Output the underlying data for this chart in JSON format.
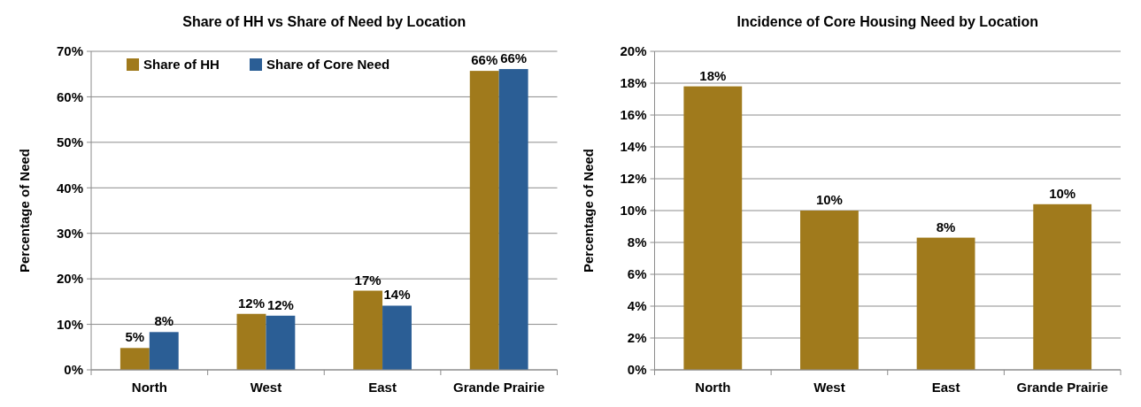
{
  "chart_data": [
    {
      "type": "bar",
      "title": "Share of HH vs Share of Need by Location",
      "ylabel": "Percentage of Need",
      "categories": [
        "North",
        "West",
        "East",
        "Grande Prairie"
      ],
      "series": [
        {
          "name": "Share of HH",
          "color": "#a07a1c",
          "values": [
            4.8,
            12.3,
            17.4,
            65.7
          ],
          "value_labels": [
            "5%",
            "12%",
            "17%",
            "66%"
          ]
        },
        {
          "name": "Share of Core Need",
          "color": "#2b5e95",
          "values": [
            8.3,
            11.9,
            14.1,
            66.1
          ],
          "value_labels": [
            "8%",
            "12%",
            "14%",
            "66%"
          ]
        }
      ],
      "ylim": [
        0,
        70
      ],
      "yticks": [
        {
          "value": 0,
          "label": "0%"
        },
        {
          "value": 10,
          "label": "10%"
        },
        {
          "value": 20,
          "label": "20%"
        },
        {
          "value": 30,
          "label": "30%"
        },
        {
          "value": 40,
          "label": "40%"
        },
        {
          "value": 50,
          "label": "50%"
        },
        {
          "value": 60,
          "label": "60%"
        },
        {
          "value": 70,
          "label": "70%"
        }
      ],
      "grid": "y",
      "legend": "top"
    },
    {
      "type": "bar",
      "title": "Incidence of Core Housing Need by Location",
      "ylabel": "Percentage of Need",
      "categories": [
        "North",
        "West",
        "East",
        "Grande Prairie"
      ],
      "series": [
        {
          "color": "#a07a1c",
          "values": [
            17.8,
            10.0,
            8.3,
            10.4
          ],
          "value_labels": [
            "18%",
            "10%",
            "8%",
            "10%"
          ]
        }
      ],
      "ylim": [
        0,
        20
      ],
      "yticks": [
        {
          "value": 0,
          "label": "0%"
        },
        {
          "value": 2,
          "label": "2%"
        },
        {
          "value": 4,
          "label": "4%"
        },
        {
          "value": 6,
          "label": "6%"
        },
        {
          "value": 8,
          "label": "8%"
        },
        {
          "value": 10,
          "label": "10%"
        },
        {
          "value": 12,
          "label": "12%"
        },
        {
          "value": 14,
          "label": "14%"
        },
        {
          "value": 16,
          "label": "16%"
        },
        {
          "value": 18,
          "label": "18%"
        },
        {
          "value": 20,
          "label": "20%"
        }
      ],
      "grid": "y",
      "legend": false
    }
  ]
}
